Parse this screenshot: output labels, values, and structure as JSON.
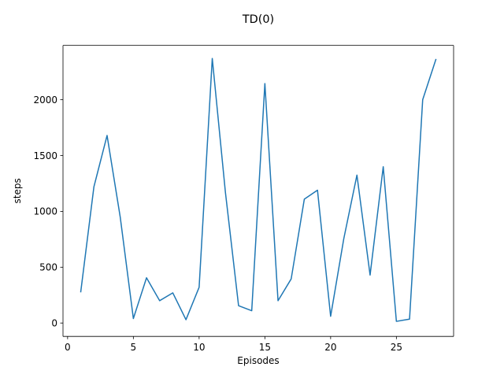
{
  "chart_data": {
    "type": "line",
    "title": "TD(0)",
    "xlabel": "Episodes",
    "ylabel": "steps",
    "xlim": [
      -0.35,
      29.35
    ],
    "ylim": [
      -120,
      2487
    ],
    "grid": false,
    "x_ticks": [
      0,
      5,
      10,
      15,
      20,
      25
    ],
    "x_tick_labels": [
      "0",
      "5",
      "10",
      "15",
      "20",
      "25"
    ],
    "y_ticks": [
      0,
      500,
      1000,
      1500,
      2000
    ],
    "y_tick_labels": [
      "0",
      "500",
      "1000",
      "1500",
      "2000"
    ],
    "series": [
      {
        "color": "#1f77b4",
        "x": [
          1,
          2,
          3,
          4,
          5,
          6,
          7,
          8,
          9,
          10,
          11,
          12,
          13,
          14,
          15,
          16,
          17,
          18,
          19,
          20,
          21,
          22,
          23,
          24,
          25,
          26,
          27,
          28
        ],
        "values": [
          280,
          1220,
          1680,
          950,
          40,
          405,
          200,
          270,
          30,
          320,
          2370,
          1170,
          155,
          110,
          2145,
          200,
          395,
          1110,
          1190,
          60,
          755,
          1325,
          430,
          1400,
          15,
          35,
          2000,
          2360
        ]
      }
    ]
  }
}
